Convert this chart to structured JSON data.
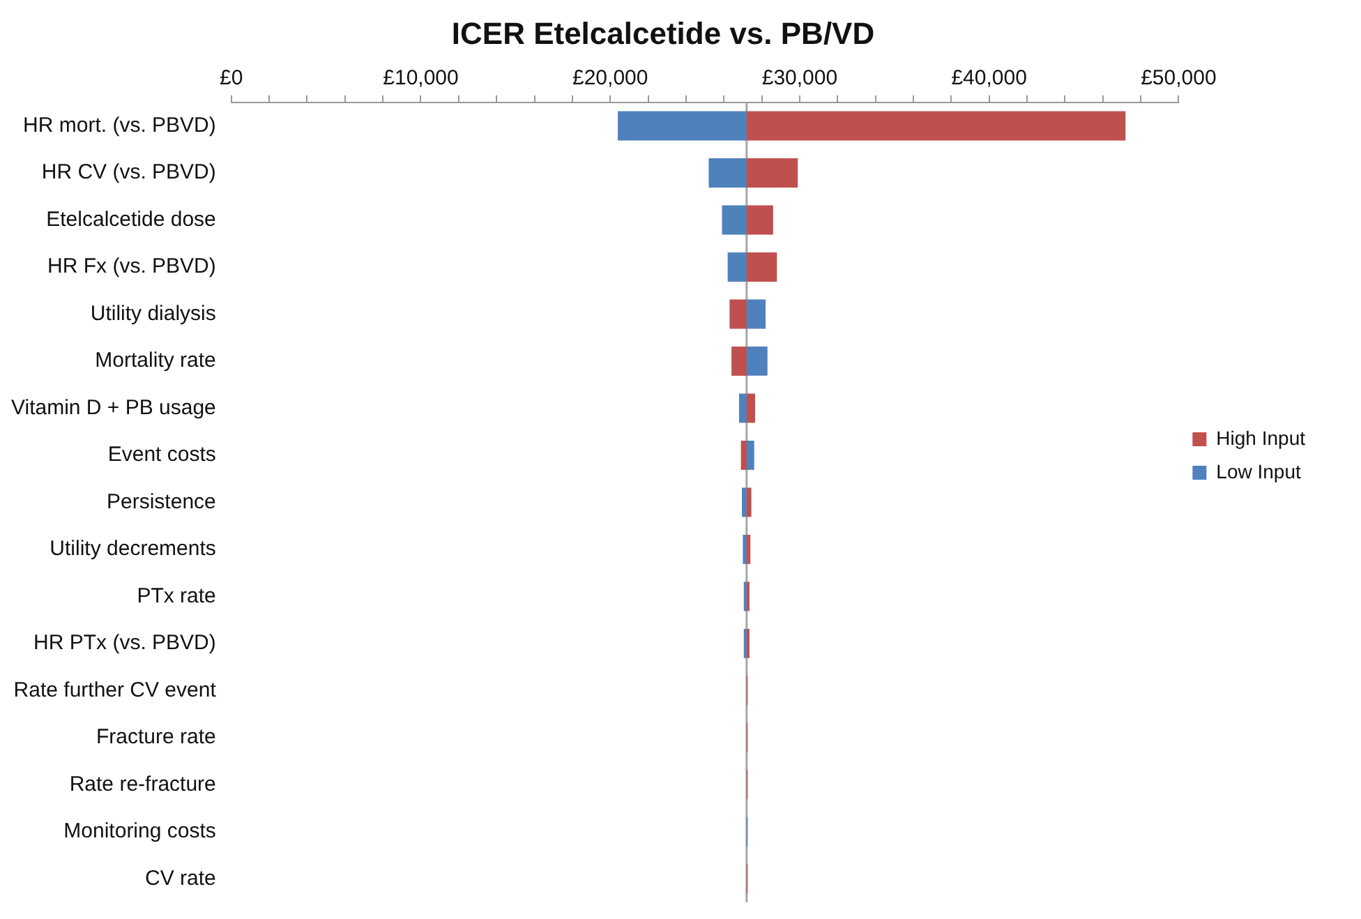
{
  "chart_data": {
    "type": "bar",
    "orientation": "horizontal",
    "title": "ICER Etelcalcetide vs. PB/VD",
    "categories": [
      "HR mort. (vs. PBVD)",
      "HR CV (vs. PBVD)",
      "Etelcalcetide dose",
      "HR Fx (vs. PBVD)",
      "Utility dialysis",
      "Mortality rate",
      "Vitamin D + PB usage",
      "Event costs",
      "Persistence",
      "Utility decrements",
      "PTx rate",
      "HR PTx (vs. PBVD)",
      "Rate further CV event",
      "Fracture rate",
      "Rate re-fracture",
      "Monitoring costs",
      "CV rate"
    ],
    "series": [
      {
        "name": "High Input",
        "color": "#c0504d",
        "base": [
          27200,
          27200,
          27200,
          27200,
          27200,
          27200,
          27200,
          27200,
          27200,
          27200,
          27200,
          27200,
          27200,
          27200,
          27200,
          null,
          27200
        ],
        "values": [
          20000,
          2700,
          1400,
          1600,
          -900,
          -800,
          450,
          -300,
          250,
          200,
          150,
          150,
          50,
          50,
          50,
          null,
          50
        ]
      },
      {
        "name": "Low Input",
        "color": "#4f81bd",
        "base": [
          27200,
          27200,
          27200,
          27200,
          27200,
          27200,
          27200,
          27200,
          27200,
          27200,
          27200,
          27200,
          null,
          null,
          null,
          27200,
          null
        ],
        "values": [
          -6800,
          -2000,
          -1300,
          -1000,
          1000,
          1100,
          -400,
          400,
          -250,
          -200,
          -150,
          -150,
          null,
          null,
          null,
          50,
          null
        ]
      }
    ],
    "xlim": [
      0,
      50000
    ],
    "xticks": [
      {
        "value": 0,
        "label": "£0"
      },
      {
        "value": 2000,
        "label": null
      },
      {
        "value": 4000,
        "label": null
      },
      {
        "value": 6000,
        "label": null
      },
      {
        "value": 8000,
        "label": null
      },
      {
        "value": 10000,
        "label": "£10,000"
      },
      {
        "value": 12000,
        "label": null
      },
      {
        "value": 14000,
        "label": null
      },
      {
        "value": 16000,
        "label": null
      },
      {
        "value": 18000,
        "label": null
      },
      {
        "value": 20000,
        "label": "£20,000"
      },
      {
        "value": 22000,
        "label": null
      },
      {
        "value": 24000,
        "label": null
      },
      {
        "value": 26000,
        "label": null
      },
      {
        "value": 28000,
        "label": null
      },
      {
        "value": 30000,
        "label": "£30,000"
      },
      {
        "value": 32000,
        "label": null
      },
      {
        "value": 34000,
        "label": null
      },
      {
        "value": 36000,
        "label": null
      },
      {
        "value": 38000,
        "label": null
      },
      {
        "value": 40000,
        "label": "£40,000"
      },
      {
        "value": 42000,
        "label": null
      },
      {
        "value": 44000,
        "label": null
      },
      {
        "value": 46000,
        "label": null
      },
      {
        "value": 48000,
        "label": null
      },
      {
        "value": 50000,
        "label": "£50,000"
      }
    ],
    "grid": false,
    "legend": "right",
    "ref_lines": [
      {
        "axis": "x",
        "value": 27200,
        "color": "#a6a6a6"
      }
    ]
  }
}
